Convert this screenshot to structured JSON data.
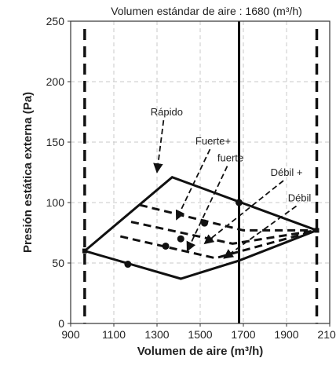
{
  "chart_data": {
    "type": "line",
    "title": "Volumen estándar de aire : 1680 (m³/h)",
    "xlabel": "Volumen de aire (m³/h)",
    "ylabel": "Presión estática externa (Pa)",
    "xlim": [
      900,
      2100
    ],
    "ylim": [
      0,
      250
    ],
    "x_ticks": [
      "900",
      "1100",
      "1300",
      "1500",
      "1700",
      "1900",
      "2100"
    ],
    "y_ticks": [
      "0",
      "50",
      "100",
      "150",
      "200",
      "250"
    ],
    "grid": true,
    "limits": {
      "min_airflow": 965,
      "max_airflow": 2040,
      "standard_airflow": 1680
    },
    "envelope": {
      "upper": [
        [
          965,
          60
        ],
        [
          1370,
          121
        ],
        [
          2040,
          77
        ]
      ],
      "lower": [
        [
          965,
          60
        ],
        [
          1410,
          37
        ],
        [
          1680,
          52
        ],
        [
          2040,
          77
        ]
      ]
    },
    "series": [
      {
        "name": "Rápido",
        "points": [
          [
            1680,
            100
          ]
        ]
      },
      {
        "name": "Fuerte+",
        "points": [
          [
            1520,
            83
          ]
        ]
      },
      {
        "name": "fuerte",
        "points": [
          [
            1410,
            70
          ]
        ]
      },
      {
        "name": "Débil +",
        "points": [
          [
            1340,
            64
          ]
        ]
      },
      {
        "name": "Débil",
        "points": [
          [
            1165,
            49
          ]
        ]
      }
    ],
    "dashed_curves": [
      [
        [
          1220,
          98
        ],
        [
          1700,
          77
        ],
        [
          2040,
          77
        ]
      ],
      [
        [
          1180,
          84
        ],
        [
          1650,
          66
        ],
        [
          2040,
          77
        ]
      ],
      [
        [
          1130,
          72
        ],
        [
          1570,
          54
        ],
        [
          2040,
          77
        ]
      ]
    ],
    "annotations": [
      {
        "label": "Rápido",
        "x": 1345,
        "y": 172,
        "target": [
          1300,
          125
        ]
      },
      {
        "label": "Fuerte+",
        "x": 1560,
        "y": 148,
        "target": [
          1390,
          86
        ]
      },
      {
        "label": "fuerte",
        "x": 1640,
        "y": 134,
        "target": [
          1440,
          60
        ]
      },
      {
        "label": "Débil +",
        "x": 1900,
        "y": 122,
        "target": [
          1520,
          66
        ]
      },
      {
        "label": "Débil",
        "x": 1960,
        "y": 101,
        "target": [
          1610,
          54
        ]
      }
    ]
  }
}
